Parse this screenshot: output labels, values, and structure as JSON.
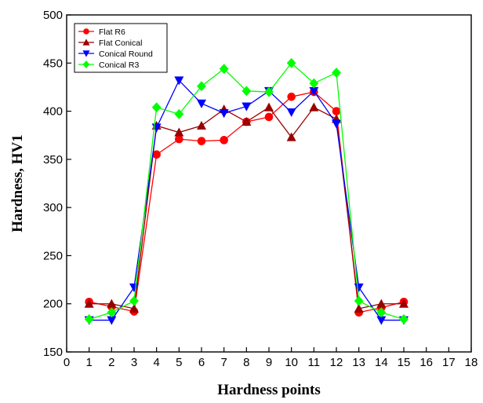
{
  "chart_data": {
    "type": "line",
    "title": "",
    "xlabel": "Hardness points",
    "ylabel": "Hardness, HV1",
    "xlim": [
      0,
      18
    ],
    "ylim": [
      150,
      500
    ],
    "xticks": [
      0,
      1,
      2,
      3,
      4,
      5,
      6,
      7,
      8,
      9,
      10,
      11,
      12,
      13,
      14,
      15,
      16,
      17,
      18
    ],
    "yticks": [
      150,
      200,
      250,
      300,
      350,
      400,
      450,
      500
    ],
    "xtick_labels": [
      "0",
      "1",
      "2",
      "3",
      "4",
      "5",
      "6",
      "7",
      "8",
      "9",
      "10",
      "11",
      "12",
      "13",
      "14",
      "15",
      "16",
      "17",
      "18"
    ],
    "ytick_labels": [
      "150",
      "200",
      "250",
      "300",
      "350",
      "400",
      "450",
      "500"
    ],
    "grid": false,
    "legend_position": "top-left",
    "x": [
      1,
      2,
      3,
      4,
      5,
      6,
      7,
      8,
      9,
      10,
      11,
      12,
      13,
      14,
      15
    ],
    "series": [
      {
        "name": "Flat R6",
        "color": "#ff0000",
        "marker": "circle",
        "values": [
          202,
          197,
          192,
          355,
          371,
          369,
          370,
          389,
          394,
          415,
          420,
          400,
          191,
          196,
          202
        ]
      },
      {
        "name": "Flat Conical",
        "color": "#990000",
        "marker": "triangle-up",
        "values": [
          200,
          200,
          195,
          385,
          378,
          385,
          402,
          389,
          404,
          373,
          404,
          392,
          195,
          200,
          200
        ]
      },
      {
        "name": "Conical Round",
        "color": "#0000ff",
        "marker": "triangle-down",
        "values": [
          183,
          183,
          217,
          383,
          432,
          408,
          398,
          405,
          421,
          399,
          421,
          387,
          217,
          183,
          183
        ]
      },
      {
        "name": "Conical R3",
        "color": "#00ff00",
        "marker": "diamond",
        "values": [
          184,
          191,
          203,
          404,
          397,
          426,
          444,
          421,
          420,
          450,
          429,
          440,
          203,
          191,
          184
        ]
      }
    ]
  }
}
